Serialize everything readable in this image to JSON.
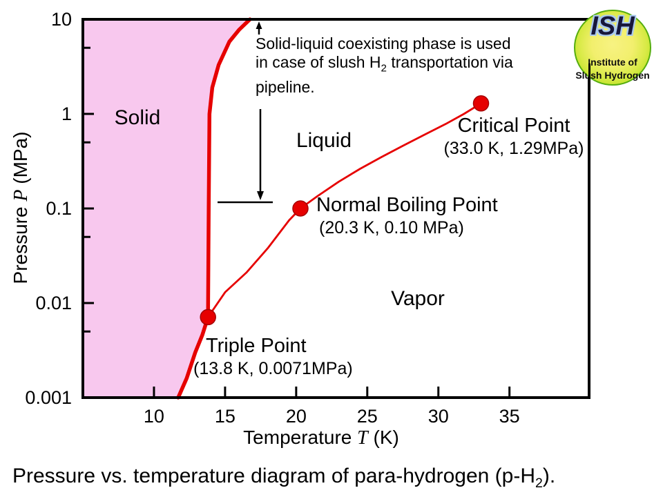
{
  "caption": {
    "before": "Pressure vs. temperature diagram of para-hydrogen (p-H",
    "sub": "2",
    "after": ")."
  },
  "logo": {
    "acronym": "ISH",
    "line1": "Institute of",
    "line2": "Slush Hydrogen"
  },
  "annotation": {
    "line1": "Solid-liquid coexisting phase is used",
    "line2_before": "in case of slush H",
    "line2_sub": "2",
    "line2_after": " transportation via",
    "line3": "pipeline."
  },
  "regions": {
    "solid": "Solid",
    "liquid": "Liquid",
    "vapor": "Vapor"
  },
  "points": {
    "critical": {
      "name": "Critical Point",
      "coords": "(33.0 K, 1.29MPa)"
    },
    "nbp": {
      "name": "Normal Boiling Point",
      "coords": "(20.3 K, 0.10 MPa)"
    },
    "triple": {
      "name": "Triple Point",
      "coords": "(13.8 K, 0.0071MPa)"
    }
  },
  "axes": {
    "x_title": {
      "before": "Temperature ",
      "var": "T",
      "after": " (K)"
    },
    "y_title": {
      "before": "Pressure ",
      "var": "P",
      "after": " (MPa)"
    }
  },
  "chart_data": {
    "type": "line",
    "title": "Pressure vs. temperature phase diagram of para-hydrogen",
    "xlabel": "Temperature T (K)",
    "ylabel": "Pressure P (MPa)",
    "x_axis": {
      "scale": "linear",
      "min": 5,
      "max": 40.6,
      "ticks": [
        10,
        15,
        20,
        25,
        30,
        35
      ]
    },
    "y_axis": {
      "scale": "log",
      "min": 0.001,
      "max": 10,
      "ticks": [
        10,
        1,
        0.1,
        0.01,
        0.001
      ],
      "tick_labels": [
        "10",
        "1",
        "0.1",
        "0.01",
        "0.001"
      ],
      "minor_ticks": [
        5,
        0.5,
        0.05,
        0.005
      ]
    },
    "grid": false,
    "solid_region_fill": "#f8c8ee",
    "curve_color": "#e60000",
    "frame_color": "#000000",
    "series": [
      {
        "name": "solid-boundary (sublimation + melting curve)",
        "color": "#e60000",
        "width": 5.5,
        "points": [
          [
            11.7,
            0.001
          ],
          [
            12.3,
            0.0016
          ],
          [
            12.9,
            0.003
          ],
          [
            13.4,
            0.0046
          ],
          [
            13.8,
            0.0071
          ],
          [
            13.82,
            0.02
          ],
          [
            13.85,
            0.1
          ],
          [
            13.9,
            1.0
          ],
          [
            14.1,
            1.9
          ],
          [
            14.55,
            3.3
          ],
          [
            15.3,
            5.8
          ],
          [
            16.0,
            7.8
          ],
          [
            16.75,
            10
          ]
        ]
      },
      {
        "name": "liquid-vapor boundary (vapor pressure curve)",
        "color": "#e60000",
        "width": 2.8,
        "points": [
          [
            13.8,
            0.0071
          ],
          [
            15.0,
            0.013
          ],
          [
            16.5,
            0.021
          ],
          [
            18.0,
            0.038
          ],
          [
            19.5,
            0.075
          ],
          [
            20.3,
            0.1
          ],
          [
            21.5,
            0.135
          ],
          [
            23.0,
            0.192
          ],
          [
            24.5,
            0.263
          ],
          [
            26.0,
            0.35
          ],
          [
            27.5,
            0.46
          ],
          [
            29.0,
            0.6
          ],
          [
            30.5,
            0.78
          ],
          [
            31.8,
            1.0
          ],
          [
            33.0,
            1.29
          ]
        ]
      }
    ],
    "points": [
      {
        "label": "Triple Point",
        "T": 13.8,
        "P": 0.0071
      },
      {
        "label": "Normal Boiling Point",
        "T": 20.3,
        "P": 0.1
      },
      {
        "label": "Critical Point",
        "T": 33.0,
        "P": 1.29
      }
    ],
    "region_labels": [
      "Solid",
      "Liquid",
      "Vapor"
    ]
  }
}
